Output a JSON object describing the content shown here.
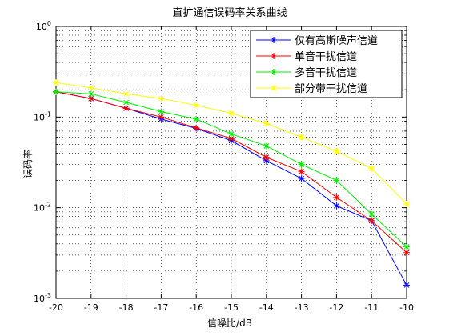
{
  "chart_data": {
    "type": "line",
    "title": "直扩通信误码率关系曲线",
    "xlabel": "信噪比/dB",
    "ylabel": "误码率",
    "x": [
      -20,
      -19,
      -18,
      -17,
      -16,
      -15,
      -14,
      -13,
      -12,
      -11,
      -10
    ],
    "xlim": [
      -20,
      -10
    ],
    "ylim": [
      0.001,
      1
    ],
    "yscale": "log",
    "x_tick_labels": [
      "-20",
      "-19",
      "-18",
      "-17",
      "-16",
      "-15",
      "-14",
      "-13",
      "-12",
      "-11",
      "-10"
    ],
    "y_tick_labels": [
      {
        "base": "10",
        "exp": "0"
      },
      {
        "base": "10",
        "exp": "-1"
      },
      {
        "base": "10",
        "exp": "-2"
      },
      {
        "base": "10",
        "exp": "-3"
      }
    ],
    "grid": "dotted",
    "legend_position": "top-right",
    "series": [
      {
        "name": "仅有高斯噪声信道",
        "color": "#0000ff",
        "marker": "asterisk",
        "values": [
          0.19,
          0.16,
          0.125,
          0.095,
          0.075,
          0.055,
          0.033,
          0.021,
          0.0105,
          0.0072,
          0.0014
        ]
      },
      {
        "name": "单音干扰信道",
        "color": "#ff0000",
        "marker": "asterisk",
        "values": [
          0.19,
          0.16,
          0.125,
          0.1,
          0.076,
          0.058,
          0.036,
          0.025,
          0.013,
          0.0072,
          0.0032
        ]
      },
      {
        "name": "多音干扰信道",
        "color": "#00ee00",
        "marker": "asterisk",
        "values": [
          0.19,
          0.18,
          0.145,
          0.115,
          0.095,
          0.065,
          0.048,
          0.03,
          0.02,
          0.0085,
          0.0037
        ]
      },
      {
        "name": "部分带干扰信道",
        "color": "#ffff00",
        "marker": "asterisk",
        "values": [
          0.24,
          0.21,
          0.18,
          0.16,
          0.135,
          0.11,
          0.085,
          0.06,
          0.042,
          0.027,
          0.011
        ]
      }
    ]
  }
}
